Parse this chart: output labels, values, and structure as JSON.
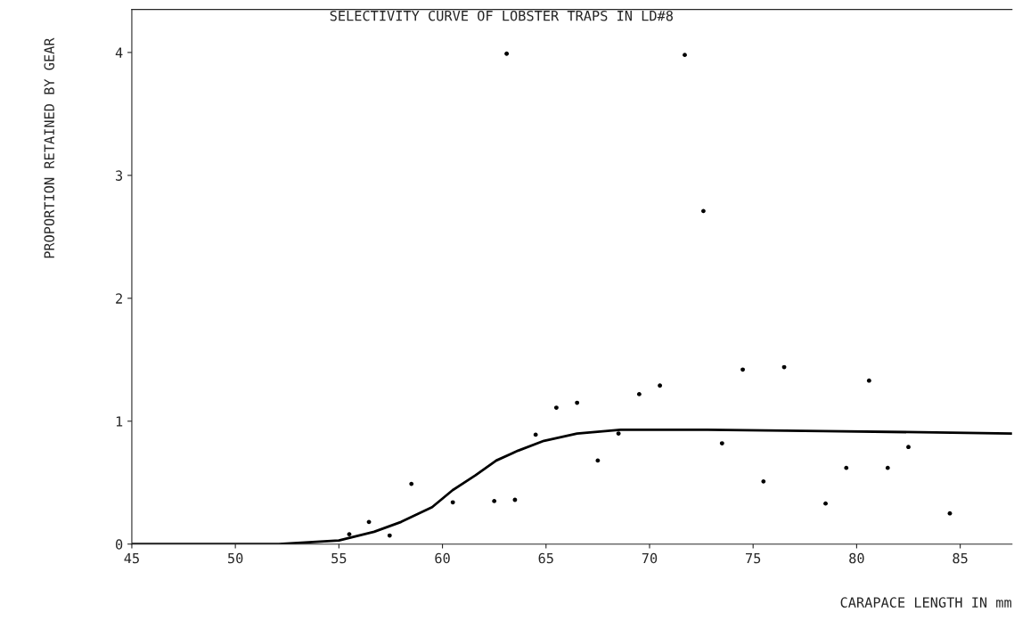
{
  "chart_data": {
    "type": "scatter",
    "title": "SELECTIVITY CURVE OF LOBSTER TRAPS IN LD#8",
    "xlabel": "CARAPACE LENGTH IN mm",
    "ylabel": "PROPORTION RETAINED BY GEAR",
    "xlim": [
      45,
      87.5
    ],
    "xticks": [
      45,
      50,
      55,
      60,
      65,
      70,
      75,
      80,
      85
    ],
    "ylim": [
      0,
      4.35
    ],
    "yticks": [
      0,
      1,
      2,
      3,
      4
    ],
    "grid": false,
    "legend": false,
    "series": [
      {
        "color": "#000000",
        "marker": "circle",
        "x": [
          55.5,
          56.45,
          57.45,
          58.5,
          60.5,
          62.5,
          63.1,
          63.5,
          64.5,
          65.5,
          66.5,
          67.5,
          68.5,
          69.5,
          70.5,
          71.7,
          72.6,
          73.5,
          74.5,
          75.5,
          76.5,
          78.5,
          79.5,
          80.6,
          81.5,
          82.5,
          84.5
        ],
        "values": [
          0.08,
          0.18,
          0.07,
          0.49,
          0.34,
          0.35,
          3.99,
          0.36,
          0.89,
          1.11,
          1.15,
          0.68,
          0.9,
          1.22,
          1.29,
          3.98,
          2.71,
          0.82,
          1.42,
          0.51,
          1.44,
          0.33,
          0.62,
          1.33,
          0.62,
          0.79,
          0.25
        ]
      },
      {
        "type": "line",
        "color": "#000000",
        "line_style": "solid",
        "x": [
          45,
          52.1,
          55,
          56.7,
          58,
          59.5,
          60.5,
          61.6,
          62.6,
          63.65,
          64.9,
          66.5,
          68.6,
          72.8,
          78.4,
          87.5
        ],
        "values": [
          0,
          0,
          0.03,
          0.1,
          0.18,
          0.3,
          0.44,
          0.56,
          0.68,
          0.76,
          0.84,
          0.9,
          0.93,
          0.93,
          0.92,
          0.9
        ]
      }
    ]
  }
}
